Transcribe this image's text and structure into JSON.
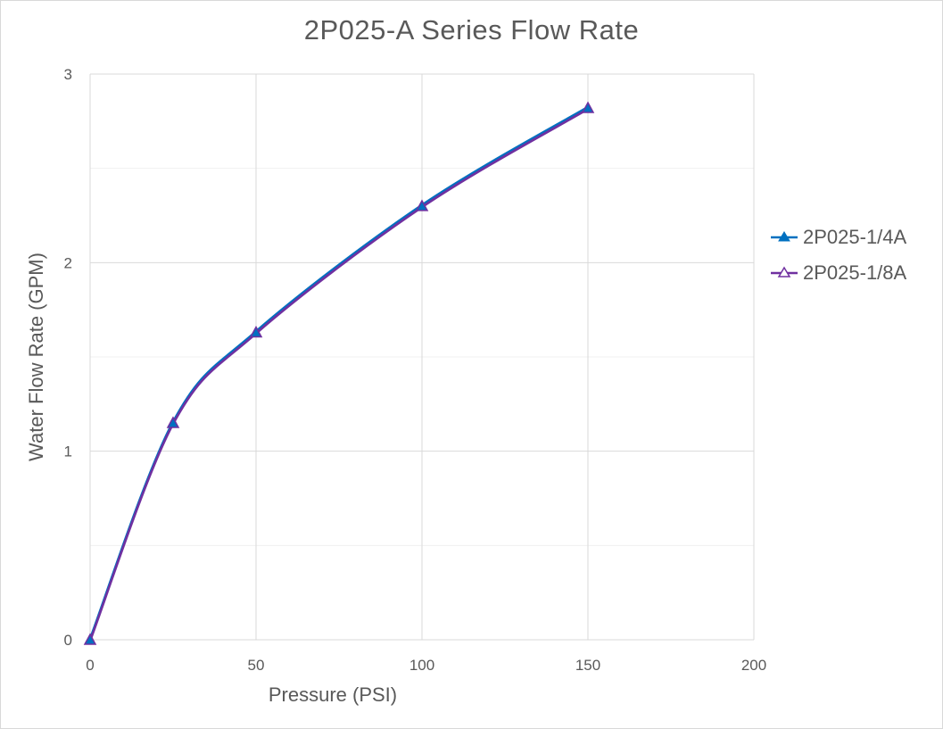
{
  "chart_data": {
    "type": "line",
    "title": "2P025-A Series Flow Rate",
    "xlabel": "Pressure (PSI)",
    "ylabel": "Water Flow Rate (GPM)",
    "xlim": [
      0,
      200
    ],
    "ylim": [
      0,
      3
    ],
    "xticks": [
      0,
      50,
      100,
      150,
      200
    ],
    "yticks": [
      0,
      1,
      2,
      3
    ],
    "x_tick_labels": [
      "0",
      "50",
      "100",
      "150",
      "200"
    ],
    "y_tick_labels": [
      "0",
      "1",
      "2",
      "3"
    ],
    "grid": true,
    "legend_position": "right",
    "x": [
      0,
      25,
      50,
      100,
      150
    ],
    "series": [
      {
        "name": "2P025-1/4A",
        "values": [
          0,
          1.15,
          1.63,
          2.3,
          2.82
        ],
        "color": "#0070c0",
        "marker": "filled-triangle"
      },
      {
        "name": "2P025-1/8A",
        "values": [
          0,
          1.15,
          1.63,
          2.3,
          2.82
        ],
        "color": "#7030a0",
        "marker": "open-triangle"
      }
    ]
  }
}
